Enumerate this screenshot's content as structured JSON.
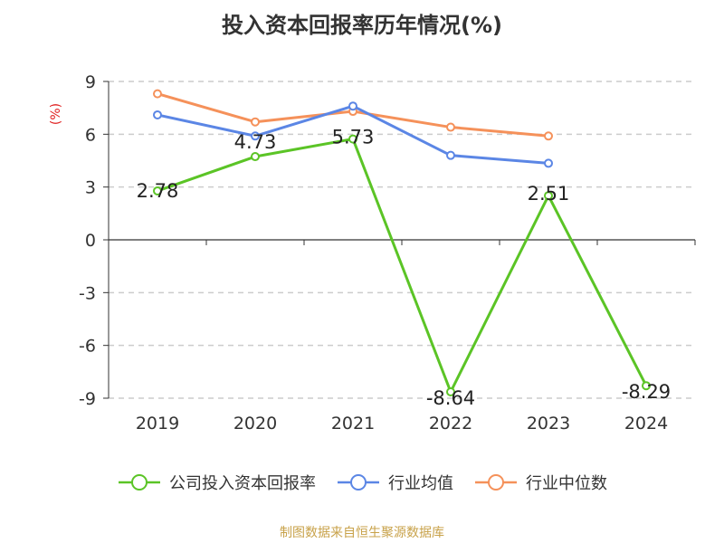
{
  "chart_data": {
    "type": "line",
    "title": "投入资本回报率历年情况(%)",
    "ylabel": "(%)",
    "categories": [
      "2019",
      "2020",
      "2021",
      "2022",
      "2023",
      "2024"
    ],
    "ylim": [
      -9,
      9
    ],
    "yticks": [
      9,
      6,
      3,
      0,
      -3,
      -6,
      -9
    ],
    "grid": true,
    "legend_position": "bottom",
    "series": [
      {
        "name": "公司投入资本回报率",
        "color": "#5bc426",
        "values": [
          2.78,
          4.73,
          5.73,
          -8.64,
          2.51,
          -8.29
        ],
        "labels": [
          "2.78",
          "4.73",
          "5.73",
          "-8.64",
          "2.51",
          "-8.29"
        ]
      },
      {
        "name": "行业均值",
        "color": "#5b86e5",
        "values": [
          7.1,
          5.9,
          7.6,
          4.8,
          4.35,
          null
        ]
      },
      {
        "name": "行业中位数",
        "color": "#f5915a",
        "values": [
          8.3,
          6.7,
          7.3,
          6.4,
          5.9,
          null
        ]
      }
    ]
  },
  "source": "制图数据来自恒生聚源数据库"
}
